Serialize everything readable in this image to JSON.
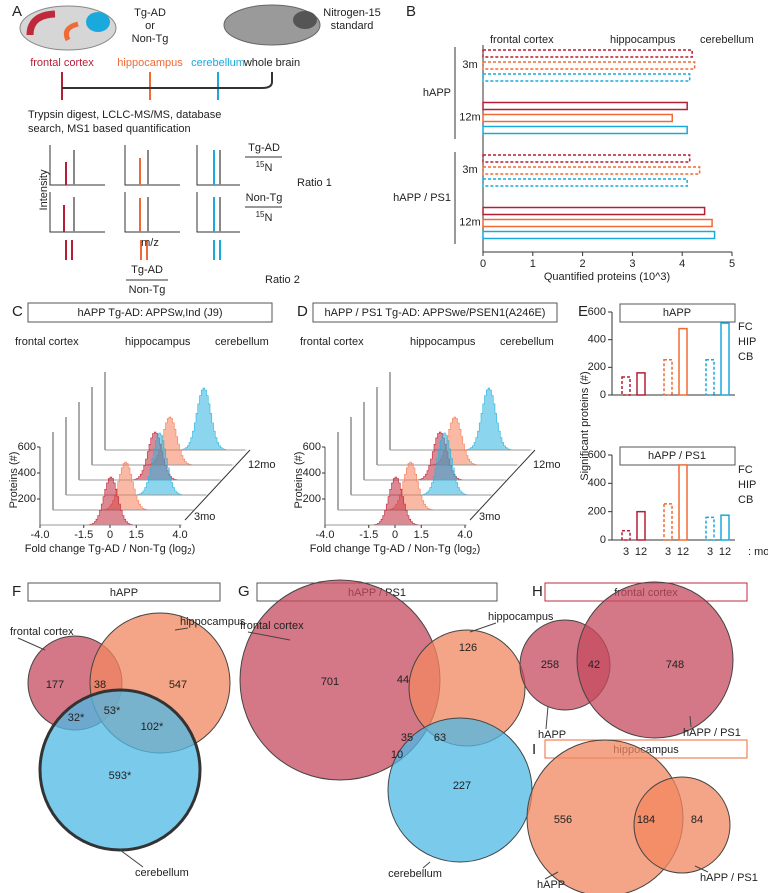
{
  "panel_labels": [
    "A",
    "B",
    "C",
    "D",
    "E",
    "F",
    "G",
    "H",
    "I"
  ],
  "panel_a": {
    "sample": [
      "Tg-AD",
      "or",
      "Non-Tg"
    ],
    "standard": [
      "Nitrogen-15",
      "standard"
    ],
    "regions": [
      "frontal cortex",
      "hippocampus",
      "cerebellum",
      "whole brain"
    ],
    "workflow": [
      "Trypsin digest, LCLC-MS/MS, database",
      "search, MS1 based quantification"
    ],
    "y_axis": "Intensity",
    "x_axis": "m/z",
    "terms": [
      "Tg-AD",
      "Non-Tg"
    ],
    "isotope": [
      "15",
      "N"
    ],
    "ratio_1": "Ratio 1",
    "ratio_2": "Ratio 2"
  },
  "chart_data": [
    {
      "type": "bar",
      "orientation": "horizontal",
      "categories": [
        "3m",
        "12m",
        "3m",
        "12m"
      ],
      "groups": [
        "hAPP",
        "hAPP / PS1"
      ],
      "dashed": [
        true,
        false,
        true,
        false
      ],
      "series": [
        {
          "name": "frontal cortex",
          "color": "#b51f35",
          "values": [
            4.2,
            4.1,
            4.15,
            4.45
          ]
        },
        {
          "name": "hippocampus",
          "color": "#f06a35",
          "values": [
            4.25,
            3.8,
            4.35,
            4.6
          ]
        },
        {
          "name": "cerebellum",
          "color": "#1aa9dd",
          "values": [
            4.15,
            4.1,
            4.1,
            4.65
          ]
        }
      ],
      "xlabel": "Quantified proteins (10^3)",
      "xlim": [
        0,
        5
      ],
      "xticks": [
        0,
        1,
        2,
        3,
        4,
        5
      ]
    },
    {
      "type": "bar",
      "title": "hAPP",
      "dashed": [
        true,
        false
      ],
      "ylabel": "Significant proteins (#)",
      "series": [
        {
          "name": "FC",
          "color": "#b51f35",
          "values": [
            130,
            160
          ]
        },
        {
          "name": "HIP",
          "color": "#f06a35",
          "values": [
            255,
            480
          ]
        },
        {
          "name": "CB",
          "color": "#1aa9dd",
          "values": [
            255,
            520
          ]
        }
      ],
      "ylim": [
        0,
        600
      ],
      "yticks": [
        0,
        200,
        400,
        600
      ]
    },
    {
      "type": "bar",
      "title": "hAPP / PS1",
      "dashed": [
        true,
        false
      ],
      "categories": [
        "3",
        "12"
      ],
      "xlabel": ": mo",
      "series": [
        {
          "name": "FC",
          "color": "#b51f35",
          "values": [
            65,
            200
          ]
        },
        {
          "name": "HIP",
          "color": "#f06a35",
          "values": [
            255,
            530
          ]
        },
        {
          "name": "CB",
          "color": "#1aa9dd",
          "values": [
            160,
            175
          ]
        }
      ],
      "ylim": [
        0,
        600
      ],
      "yticks": [
        0,
        200,
        400,
        600
      ]
    }
  ],
  "histogram_panels": [
    {
      "title": "hAPP Tg-AD: APPSw,Ind (J9)",
      "legend": [
        "frontal cortex",
        "hippocampus",
        "cerebellum"
      ],
      "colors": [
        "#c0283c",
        "#f47f5a",
        "#2bb5e0"
      ],
      "ylabel": "Proteins (#)",
      "xlabel": [
        "Fold change Tg-AD / Non-Tg (log",
        "2",
        ")"
      ],
      "depth_labels": [
        "3mo",
        "12mo"
      ],
      "xlim": [
        -4,
        4
      ],
      "xticks": [
        {
          "value": -4,
          "label": "-4.0"
        },
        {
          "value": -1.5,
          "label": "-1.5"
        },
        0,
        {
          "value": 1.5,
          "label": "1.5"
        },
        {
          "value": 4,
          "label": "4.0"
        }
      ],
      "ylim": [
        0,
        600
      ],
      "yticks": [
        200,
        400,
        600
      ]
    },
    {
      "title": "hAPP / PS1 Tg-AD: APPSwe/PSEN1(A246E)",
      "legend": [
        "frontal cortex",
        "hippocampus",
        "cerebellum"
      ],
      "colors": [
        "#c0283c",
        "#f47f5a",
        "#2bb5e0"
      ],
      "ylabel": "Proteins (#)",
      "xlabel": [
        "Fold change Tg-AD / Non-Tg (log",
        "2",
        ")"
      ],
      "depth_labels": [
        "3mo",
        "12mo"
      ],
      "xlim": [
        -4,
        4
      ],
      "xticks": [
        {
          "value": -4,
          "label": "-4.0"
        },
        {
          "value": -1.5,
          "label": "-1.5"
        },
        0,
        {
          "value": 1.5,
          "label": "1.5"
        },
        {
          "value": 4,
          "label": "4.0"
        }
      ],
      "ylim": [
        0,
        600
      ],
      "yticks": [
        200,
        400,
        600
      ]
    }
  ],
  "venns": [
    {
      "title": "hAPP",
      "sets": [
        "frontal cortex",
        "hippocampus",
        "cerebellum"
      ],
      "regions": [
        177,
        38,
        547,
        "32*",
        "53*",
        "102*",
        "593*"
      ]
    },
    {
      "title": "hAPP / PS1",
      "sets": [
        "frontal cortex",
        "hippocampus",
        "cerebellum"
      ],
      "regions": [
        701,
        44,
        126,
        35,
        63,
        10,
        227
      ]
    },
    {
      "title": "frontal cortex",
      "sets": [
        "hAPP",
        "hAPP / PS1"
      ],
      "regions": [
        258,
        42,
        748
      ]
    },
    {
      "title": "hippocampus",
      "sets": [
        "hAPP",
        "hAPP / PS1"
      ],
      "regions": [
        556,
        184,
        84
      ]
    }
  ]
}
